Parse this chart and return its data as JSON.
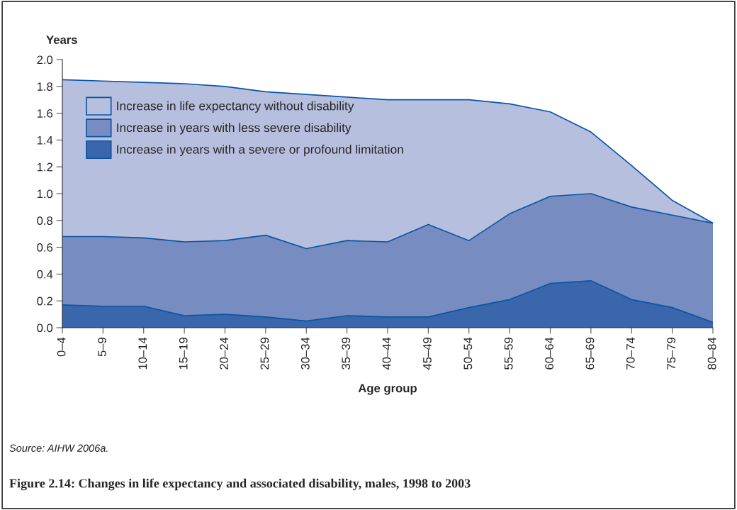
{
  "chart_data": {
    "type": "area",
    "stacked": true,
    "title": "Figure 2.14: Changes in life expectancy and associated disability, males, 1998 to 2003",
    "xlabel": "Age group",
    "ylabel": "Years",
    "categories": [
      "0–4",
      "5–9",
      "10–14",
      "15–19",
      "20–24",
      "25–29",
      "30–34",
      "35–39",
      "40–44",
      "45–49",
      "50–54",
      "55–59",
      "60–64",
      "65–69",
      "70–74",
      "75–79",
      "80–84"
    ],
    "series": [
      {
        "name": "Increase in years with a severe or profound limitation",
        "color": "#3a66ab",
        "values": [
          0.17,
          0.16,
          0.16,
          0.09,
          0.1,
          0.08,
          0.05,
          0.09,
          0.08,
          0.08,
          0.15,
          0.21,
          0.33,
          0.35,
          0.21,
          0.15,
          0.04
        ]
      },
      {
        "name": "Increase in years with less severe disability",
        "color": "#778cc0",
        "values": [
          0.51,
          0.52,
          0.51,
          0.55,
          0.55,
          0.61,
          0.54,
          0.56,
          0.56,
          0.69,
          0.5,
          0.64,
          0.65,
          0.65,
          0.69,
          0.69,
          0.74
        ]
      },
      {
        "name": "Increase in life expectancy without disability",
        "color": "#b6bfde",
        "values": [
          1.17,
          1.16,
          1.16,
          1.18,
          1.15,
          1.07,
          1.15,
          1.07,
          1.06,
          0.93,
          1.05,
          0.82,
          0.63,
          0.46,
          0.31,
          0.11,
          0
        ]
      }
    ],
    "ylim": [
      0,
      2.0
    ],
    "yticks": [
      {
        "value": 0,
        "label": "0.0"
      },
      0.2,
      0.4,
      0.6,
      0.8,
      {
        "value": 1,
        "label": "1.0"
      },
      1.2,
      1.4,
      1.6,
      1.8,
      {
        "value": 2,
        "label": "2.0"
      }
    ],
    "legend": "top left",
    "grid": false,
    "annotations": [
      "Source: AIHW 2006a."
    ]
  }
}
